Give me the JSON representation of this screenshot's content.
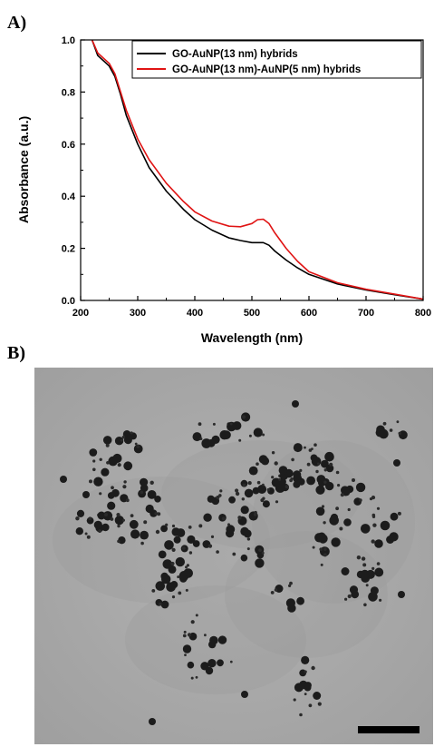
{
  "panels": {
    "a_label": "A)",
    "b_label": "B)"
  },
  "chart_data": {
    "type": "line",
    "title": "",
    "xlabel": "Wavelength (nm)",
    "ylabel": "Absorbance (a.u.)",
    "xlim": [
      200,
      800
    ],
    "ylim": [
      0.0,
      1.0
    ],
    "xticks": [
      "200",
      "300",
      "400",
      "500",
      "600",
      "700",
      "800"
    ],
    "yticks": [
      "0.0",
      "0.2",
      "0.4",
      "0.6",
      "0.8",
      "1.0"
    ],
    "grid": false,
    "legend_position": "top-right",
    "series": [
      {
        "name": "GO-AuNP(13 nm) hybrids",
        "color": "#000000",
        "x": [
          220,
          230,
          250,
          260,
          270,
          280,
          300,
          320,
          350,
          380,
          400,
          430,
          460,
          480,
          500,
          520,
          530,
          540,
          560,
          580,
          600,
          650,
          700,
          750,
          800
        ],
        "y": [
          1.0,
          0.94,
          0.9,
          0.86,
          0.79,
          0.71,
          0.6,
          0.51,
          0.42,
          0.35,
          0.31,
          0.27,
          0.24,
          0.23,
          0.222,
          0.222,
          0.212,
          0.19,
          0.155,
          0.125,
          0.1,
          0.063,
          0.04,
          0.022,
          0.005
        ]
      },
      {
        "name": "GO-AuNP(13 nm)-AuNP(5 nm) hybrids",
        "color": "#e01414",
        "x": [
          220,
          230,
          250,
          260,
          270,
          280,
          300,
          320,
          350,
          380,
          400,
          430,
          460,
          480,
          500,
          510,
          520,
          530,
          540,
          560,
          580,
          600,
          650,
          700,
          750,
          800
        ],
        "y": [
          1.0,
          0.95,
          0.91,
          0.87,
          0.8,
          0.73,
          0.62,
          0.54,
          0.45,
          0.38,
          0.34,
          0.305,
          0.285,
          0.283,
          0.295,
          0.31,
          0.312,
          0.295,
          0.26,
          0.2,
          0.15,
          0.11,
          0.068,
          0.043,
          0.024,
          0.005
        ]
      }
    ]
  }
}
